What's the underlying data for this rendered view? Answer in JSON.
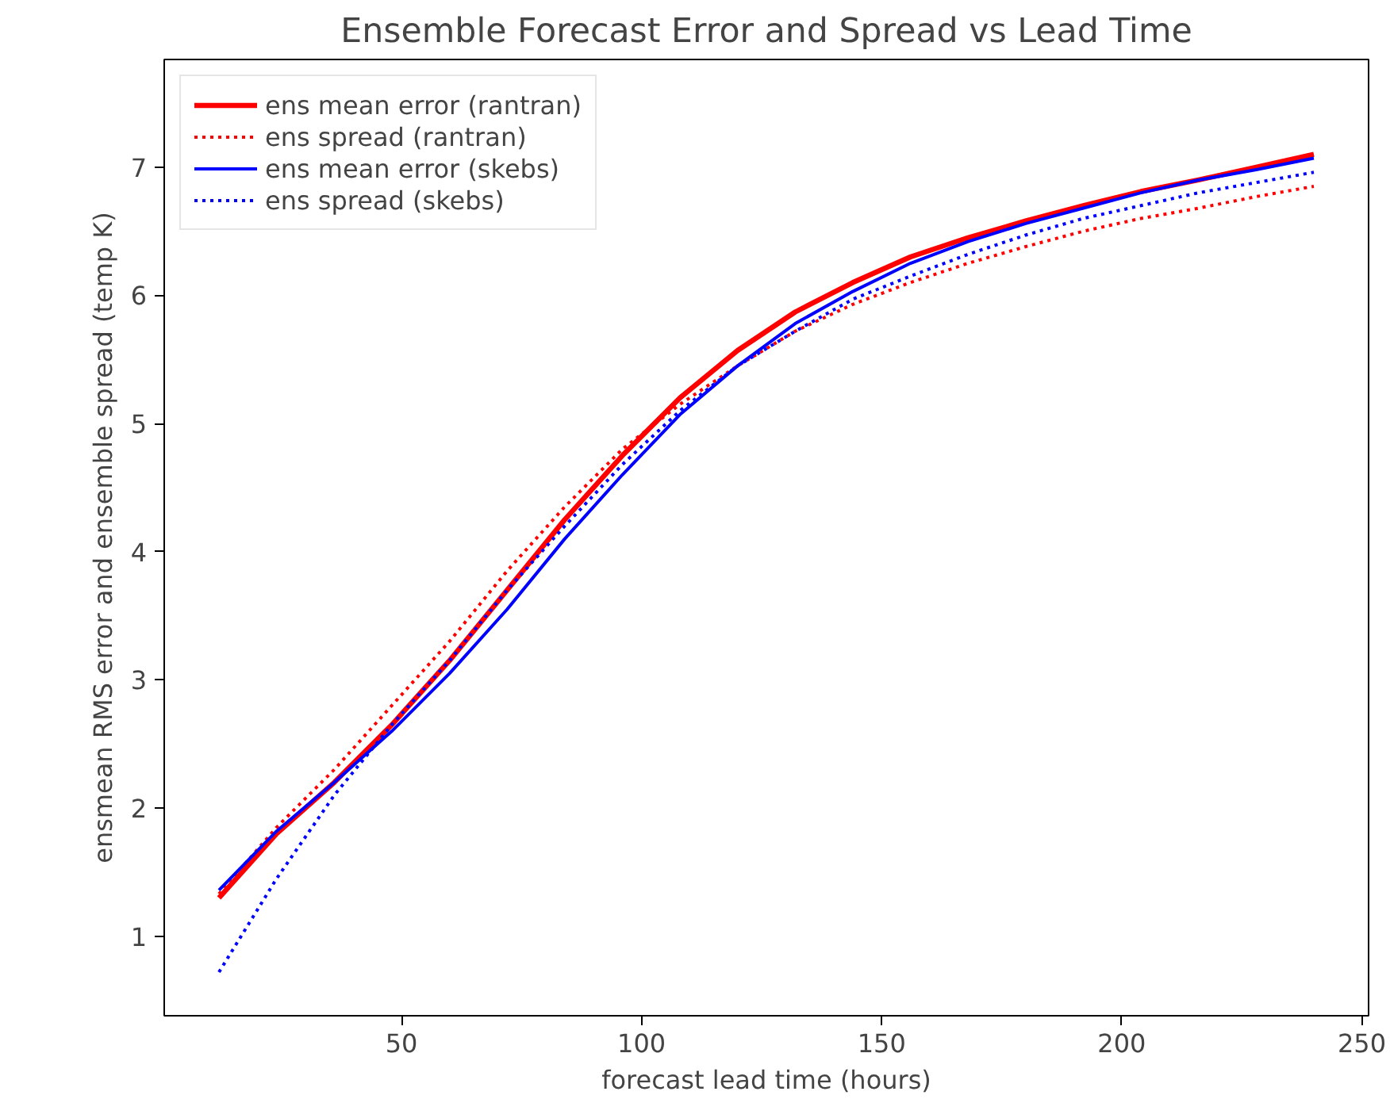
{
  "chart_data": {
    "type": "line",
    "title": "Ensemble Forecast Error and Spread vs Lead Time",
    "xlabel": "forecast lead time (hours)",
    "ylabel": "ensmean RMS error and ensemble spread (temp K)",
    "x": [
      12,
      24,
      36,
      48,
      60,
      72,
      84,
      96,
      108,
      120,
      132,
      144,
      156,
      168,
      180,
      192,
      204,
      216,
      228,
      240
    ],
    "series": [
      {
        "name": "ens mean error (rantran)",
        "color": "#ff0000",
        "line_style": "solid",
        "values": [
          1.3,
          1.8,
          2.2,
          2.65,
          3.15,
          3.7,
          4.25,
          4.75,
          5.2,
          5.57,
          5.87,
          6.1,
          6.3,
          6.45,
          6.58,
          6.7,
          6.81,
          6.9,
          7.0,
          7.1
        ]
      },
      {
        "name": "ens spread (rantran)",
        "color": "#ff0000",
        "line_style": "dotted",
        "values": [
          1.33,
          1.85,
          2.3,
          2.8,
          3.3,
          3.85,
          4.35,
          4.8,
          5.15,
          5.45,
          5.72,
          5.93,
          6.1,
          6.25,
          6.38,
          6.5,
          6.6,
          6.68,
          6.77,
          6.85
        ]
      },
      {
        "name": "ens mean error (skebs)",
        "color": "#0000ff",
        "line_style": "solid",
        "values": [
          1.36,
          1.82,
          2.2,
          2.6,
          3.05,
          3.55,
          4.1,
          4.6,
          5.07,
          5.45,
          5.78,
          6.03,
          6.25,
          6.42,
          6.56,
          6.68,
          6.8,
          6.9,
          6.98,
          7.07
        ]
      },
      {
        "name": "ens spread (skebs)",
        "color": "#0000ff",
        "line_style": "dotted",
        "values": [
          0.72,
          1.45,
          2.1,
          2.65,
          3.15,
          3.7,
          4.2,
          4.68,
          5.1,
          5.45,
          5.72,
          5.97,
          6.15,
          6.32,
          6.47,
          6.6,
          6.7,
          6.8,
          6.88,
          6.96
        ]
      }
    ],
    "xlim": [
      0.6,
      251.4
    ],
    "xticks": [
      50,
      100,
      150,
      200,
      250
    ],
    "ylim": [
      0.38,
      7.84
    ],
    "yticks": [
      1,
      2,
      3,
      4,
      5,
      6,
      7
    ],
    "grid": false,
    "legend": "top left"
  }
}
